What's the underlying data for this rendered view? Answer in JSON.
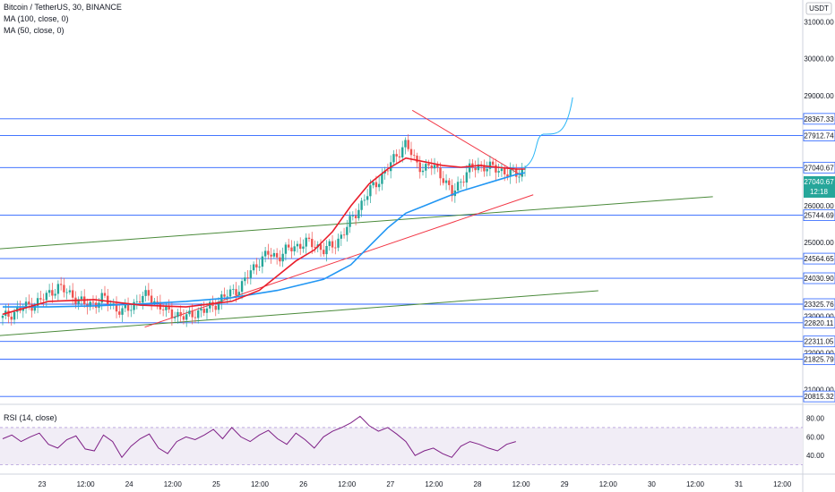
{
  "legend": {
    "symbol": "Bitcoin / TetherUS, 30, BINANCE",
    "ma100": "MA (100, close, 0)",
    "ma50": "MA (50, close, 0)",
    "rsi": "RSI (14, close)"
  },
  "currency_badge": "USDT",
  "price_badge": {
    "value": "27040.67",
    "time": "12:18"
  },
  "colors": {
    "level": "#2962ff",
    "ma100": "#e91e2b",
    "ma50": "#2196f3",
    "trendline_red": "#f23645",
    "trendline_green": "#4a8a3a",
    "projection": "#29b6f6",
    "rsi": "#7e1f86",
    "up": "#26a69a",
    "down": "#ef5350",
    "price_badge": "#26a69a"
  },
  "chart_data": {
    "type": "candlestick",
    "title": "Bitcoin / TetherUS, 30, BINANCE",
    "x_ticks": [
      "23",
      "12:00",
      "24",
      "12:00",
      "25",
      "12:00",
      "26",
      "12:00",
      "27",
      "12:00",
      "28",
      "12:00",
      "29",
      "12:00",
      "30",
      "12:00",
      "31",
      "12:00"
    ],
    "y_ticks": [
      31000,
      30000,
      29000,
      26000,
      25000,
      24000,
      23000,
      22000,
      21000
    ],
    "y_range": [
      20600,
      31600
    ],
    "levels": [
      28367.33,
      27912.74,
      27040.67,
      25744.69,
      24564.65,
      24030.9,
      23325.76,
      22820.11,
      22311.05,
      21825.79,
      20815.32
    ],
    "ohlc_close_path": [
      [
        0,
        22950
      ],
      [
        2,
        23200
      ],
      [
        4,
        23400
      ],
      [
        5,
        23600
      ],
      [
        6,
        23800
      ],
      [
        7,
        23650
      ],
      [
        8,
        23500
      ],
      [
        9,
        23300
      ],
      [
        10,
        23350
      ],
      [
        11,
        23500
      ],
      [
        12,
        23300
      ],
      [
        13,
        23100
      ],
      [
        14,
        23250
      ],
      [
        15,
        23500
      ],
      [
        16,
        23550
      ],
      [
        17,
        23300
      ],
      [
        18,
        23100
      ],
      [
        19,
        23050
      ],
      [
        20,
        22950
      ],
      [
        21,
        23100
      ],
      [
        22,
        23150
      ],
      [
        23,
        23300
      ],
      [
        24,
        23500
      ],
      [
        25,
        23650
      ],
      [
        26,
        23800
      ],
      [
        27,
        24200
      ],
      [
        28,
        24500
      ],
      [
        29,
        24700
      ],
      [
        30,
        24600
      ],
      [
        31,
        24800
      ],
      [
        32,
        24900
      ],
      [
        33,
        25000
      ],
      [
        34,
        24950
      ],
      [
        35,
        24800
      ],
      [
        36,
        24900
      ],
      [
        37,
        25200
      ],
      [
        38,
        25600
      ],
      [
        39,
        26000
      ],
      [
        40,
        26400
      ],
      [
        41,
        26700
      ],
      [
        42,
        27000
      ],
      [
        43,
        27400
      ],
      [
        44,
        27700
      ],
      [
        45,
        27200
      ],
      [
        46,
        27000
      ],
      [
        47,
        27100
      ],
      [
        48,
        26800
      ],
      [
        49,
        26300
      ],
      [
        50,
        26700
      ],
      [
        51,
        27000
      ],
      [
        52,
        27100
      ],
      [
        53,
        27050
      ],
      [
        54,
        27000
      ],
      [
        55,
        26900
      ],
      [
        56,
        26850
      ],
      [
        57,
        27000
      ]
    ],
    "ma50": [
      [
        0,
        23250
      ],
      [
        5,
        23250
      ],
      [
        10,
        23280
      ],
      [
        15,
        23330
      ],
      [
        20,
        23400
      ],
      [
        25,
        23500
      ],
      [
        30,
        23700
      ],
      [
        35,
        24000
      ],
      [
        38,
        24400
      ],
      [
        40,
        24900
      ],
      [
        42,
        25400
      ],
      [
        44,
        25800
      ],
      [
        46,
        26000
      ],
      [
        48,
        26200
      ],
      [
        50,
        26400
      ],
      [
        52,
        26550
      ],
      [
        54,
        26700
      ],
      [
        56,
        26850
      ],
      [
        57,
        26900
      ]
    ],
    "ma100": [
      [
        0,
        23050
      ],
      [
        5,
        23400
      ],
      [
        10,
        23450
      ],
      [
        15,
        23300
      ],
      [
        20,
        23250
      ],
      [
        25,
        23400
      ],
      [
        28,
        23700
      ],
      [
        30,
        24100
      ],
      [
        32,
        24500
      ],
      [
        34,
        24800
      ],
      [
        36,
        25300
      ],
      [
        38,
        26000
      ],
      [
        40,
        26600
      ],
      [
        42,
        27000
      ],
      [
        44,
        27300
      ],
      [
        46,
        27200
      ],
      [
        48,
        27100
      ],
      [
        50,
        27050
      ],
      [
        52,
        27100
      ],
      [
        54,
        27050
      ],
      [
        56,
        27000
      ],
      [
        57,
        27000
      ]
    ],
    "rsi": {
      "y_ticks": [
        80,
        60,
        40
      ],
      "band": [
        30,
        70
      ],
      "values": [
        58,
        62,
        55,
        60,
        64,
        52,
        48,
        57,
        61,
        47,
        45,
        62,
        55,
        38,
        50,
        58,
        63,
        48,
        42,
        55,
        60,
        57,
        62,
        68,
        58,
        70,
        60,
        55,
        62,
        67,
        58,
        52,
        64,
        57,
        48,
        60,
        66,
        70,
        75,
        82,
        72,
        66,
        70,
        63,
        55,
        40,
        45,
        48,
        42,
        38,
        50,
        55,
        52,
        48,
        45,
        52,
        55
      ]
    }
  }
}
